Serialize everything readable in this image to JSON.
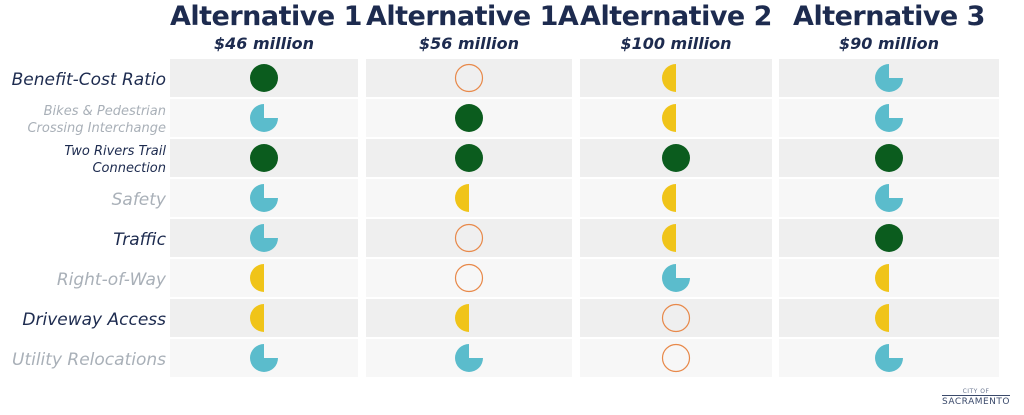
{
  "alternatives": [
    {
      "title": "Alternative 1",
      "cost": "$46 million"
    },
    {
      "title": "Alternative 1A",
      "cost": "$56 million"
    },
    {
      "title": "Alternative 2",
      "cost": "$100 million"
    },
    {
      "title": "Alternative 3",
      "cost": "$90 million"
    }
  ],
  "criteria": [
    {
      "label": "Benefit-Cost Ratio",
      "style": "dark",
      "ratings": [
        "full",
        "empty",
        "half",
        "three_quarter"
      ]
    },
    {
      "label": "Bikes & Pedestrian\nCrossing Interchange",
      "style": "light-small",
      "ratings": [
        "three_quarter",
        "full",
        "half",
        "three_quarter"
      ]
    },
    {
      "label": "Two Rivers Trail\nConnection",
      "style": "dark-small",
      "ratings": [
        "full",
        "full",
        "full",
        "full"
      ]
    },
    {
      "label": "Safety",
      "style": "light",
      "ratings": [
        "three_quarter",
        "half",
        "half",
        "three_quarter"
      ]
    },
    {
      "label": "Traffic",
      "style": "dark",
      "ratings": [
        "three_quarter",
        "empty",
        "half",
        "full"
      ]
    },
    {
      "label": "Right-of-Way",
      "style": "light",
      "ratings": [
        "half",
        "empty",
        "three_quarter",
        "half"
      ]
    },
    {
      "label": "Driveway Access",
      "style": "dark",
      "ratings": [
        "half",
        "half",
        "empty",
        "half"
      ]
    },
    {
      "label": "Utility Relocations",
      "style": "light",
      "ratings": [
        "three_quarter",
        "three_quarter",
        "empty",
        "three_quarter"
      ]
    }
  ],
  "rating_styles": {
    "full": {
      "color": "#0b5c1e",
      "icon": "full-circle-icon"
    },
    "three_quarter": {
      "color": "#5bbccc",
      "icon": "three-quarter-circle-icon"
    },
    "half": {
      "color": "#f0c419",
      "icon": "half-circle-icon"
    },
    "empty": {
      "color": "#e8894a",
      "icon": "empty-circle-icon"
    }
  },
  "colors": {
    "title": "#1d2b4f",
    "label_dark": "#1d2b4f",
    "label_light": "#a9b0b8",
    "row_shade": "#efefef",
    "row_plain": "#f7f7f7"
  },
  "logo": {
    "small": "CITY OF",
    "text": "SACRAMENTO"
  }
}
